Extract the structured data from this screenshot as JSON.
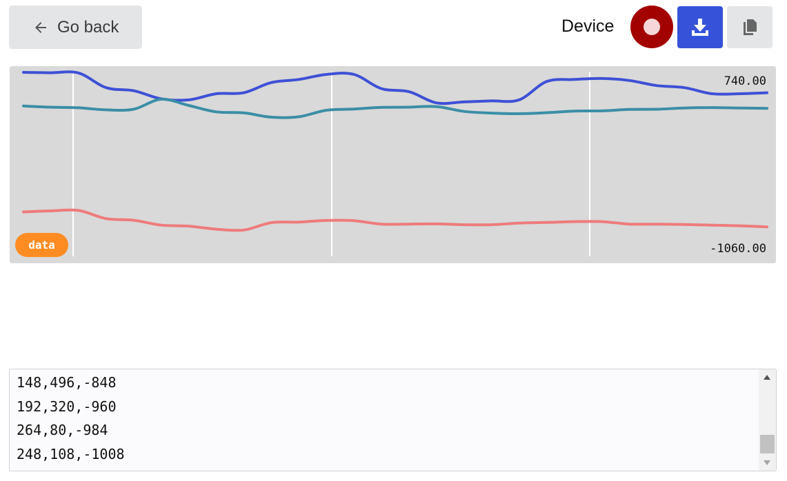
{
  "header": {
    "back_label": "Go back",
    "device_label": "Device",
    "icons": {
      "back": "arrow-left-icon",
      "record": "record-icon",
      "download": "download-icon",
      "copy": "copy-icon"
    },
    "colors": {
      "record": "#a30000",
      "download": "#3552d8"
    }
  },
  "chart": {
    "max_label": "740.00",
    "min_label": "-1060.00",
    "badge_label": "data"
  },
  "chart_data": {
    "type": "line",
    "ylim": [
      -1060,
      740
    ],
    "grid": "vertical",
    "series": [
      {
        "color": "#3d50d6",
        "values": [
          740,
          736,
          734,
          590,
          560,
          480,
          470,
          530,
          540,
          640,
          670,
          720,
          720,
          580,
          550,
          440,
          450,
          460,
          470,
          650,
          670,
          680,
          660,
          610,
          590,
          530,
          530,
          540
        ]
      },
      {
        "color": "#3a8ea6",
        "values": [
          410,
          398,
          392,
          372,
          378,
          476,
          415,
          352,
          342,
          300,
          304,
          368,
          380,
          396,
          398,
          404,
          356,
          340,
          334,
          344,
          360,
          362,
          376,
          378,
          390,
          394,
          390,
          386
        ]
      },
      {
        "color": "#ee7b7b",
        "values": [
          -630,
          -620,
          -616,
          -696,
          -712,
          -760,
          -770,
          -800,
          -808,
          -736,
          -730,
          -714,
          -716,
          -750,
          -750,
          -748,
          -756,
          -756,
          -740,
          -734,
          -726,
          -726,
          -750,
          -750,
          -754,
          -760,
          -766,
          -778
        ]
      }
    ]
  },
  "console": {
    "lines": [
      "148,496,-848",
      "192,320,-960",
      "264,80,-984",
      "248,108,-1008"
    ]
  }
}
